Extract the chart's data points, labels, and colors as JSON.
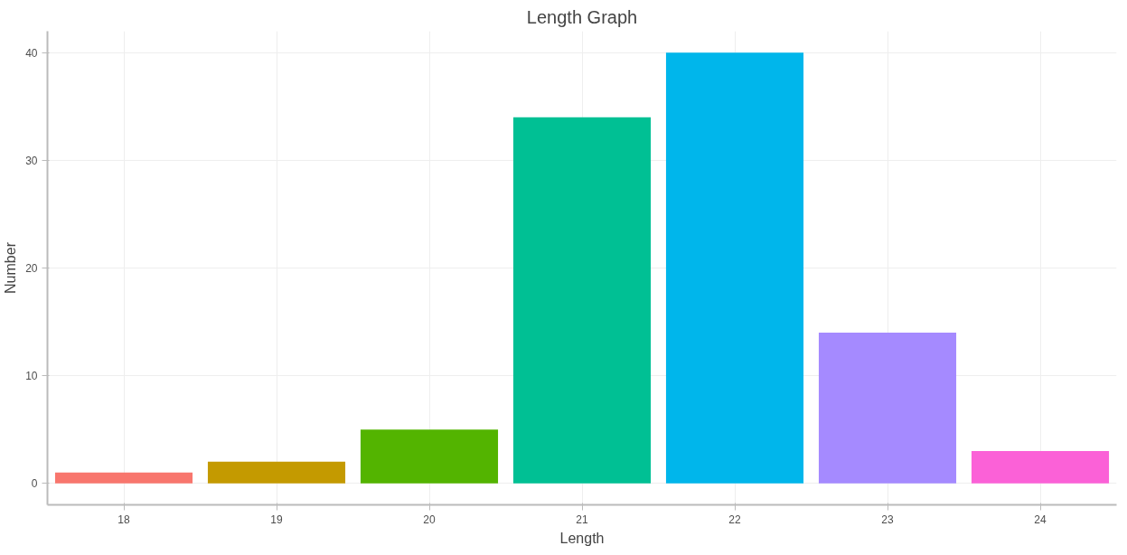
{
  "chart_data": {
    "type": "bar",
    "title": "Length Graph",
    "xlabel": "Length",
    "ylabel": "Number",
    "categories": [
      "18",
      "19",
      "20",
      "21",
      "22",
      "23",
      "24"
    ],
    "values": [
      1,
      2,
      5,
      34,
      40,
      14,
      3
    ],
    "colors": [
      "#f8766d",
      "#c49a00",
      "#53b400",
      "#00c094",
      "#00b6eb",
      "#a58aff",
      "#fb61d7"
    ],
    "ylim": [
      -2,
      42
    ],
    "yticks": [
      0,
      10,
      20,
      30,
      40
    ],
    "grid": true
  }
}
